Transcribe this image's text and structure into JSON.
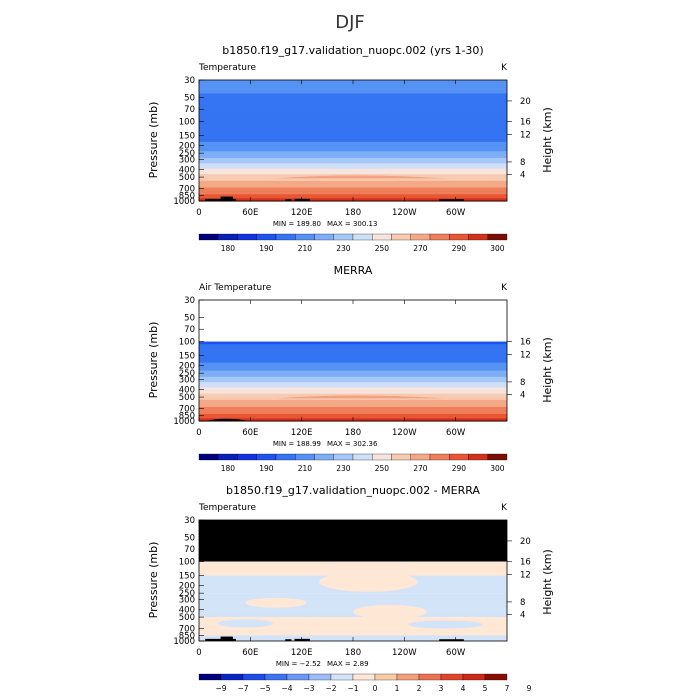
{
  "figure": {
    "title": "DJF"
  },
  "chart_data": [
    {
      "type": "heatmap",
      "title": "b1850.f19_g17.validation_nuopc.002 (yrs 1-30)",
      "field_label": "Temperature",
      "units": "K",
      "xlabel": "",
      "ylabel": "Pressure (mb)",
      "ylabel_right": "Height (km)",
      "x_ticks": [
        "0",
        "60E",
        "120E",
        "180",
        "120W",
        "60W"
      ],
      "y_ticks": [
        "30",
        "50",
        "70",
        "100",
        "150",
        "200",
        "250",
        "300",
        "400",
        "500",
        "700",
        "850",
        "1000"
      ],
      "height_ticks": [
        "20",
        "16",
        "12",
        "8",
        "4"
      ],
      "ylim": [
        1000,
        30
      ],
      "min_label": "MIN = 189.80",
      "max_label": "MAX = 300.13",
      "colorbar_labels": [
        "180",
        "190",
        "210",
        "230",
        "250",
        "270",
        "290",
        "300"
      ],
      "levels": [
        180,
        185,
        190,
        200,
        210,
        220,
        230,
        240,
        250,
        260,
        270,
        280,
        290,
        295,
        300
      ],
      "profile": [
        {
          "p": 1000,
          "v": 297
        },
        {
          "p": 850,
          "v": 292
        },
        {
          "p": 700,
          "v": 282
        },
        {
          "p": 500,
          "v": 265
        },
        {
          "p": 400,
          "v": 252
        },
        {
          "p": 300,
          "v": 234
        },
        {
          "p": 250,
          "v": 222
        },
        {
          "p": 200,
          "v": 213
        },
        {
          "p": 150,
          "v": 206
        },
        {
          "p": 100,
          "v": 201
        },
        {
          "p": 70,
          "v": 205
        },
        {
          "p": 50,
          "v": 209
        },
        {
          "p": 30,
          "v": 214
        }
      ]
    },
    {
      "type": "heatmap",
      "title": "MERRA",
      "field_label": "Air Temperature",
      "units": "K",
      "xlabel": "",
      "ylabel": "Pressure (mb)",
      "ylabel_right": "Height (km)",
      "x_ticks": [
        "0",
        "60E",
        "120E",
        "180",
        "120W",
        "60W"
      ],
      "y_ticks": [
        "30",
        "50",
        "70",
        "100",
        "150",
        "200",
        "250",
        "300",
        "400",
        "500",
        "700",
        "850",
        "1000"
      ],
      "height_ticks": [
        "16",
        "12",
        "8",
        "4"
      ],
      "ylim": [
        1000,
        30
      ],
      "data_top_p": 100,
      "min_label": "MIN = 188.99",
      "max_label": "MAX = 302.36",
      "colorbar_labels": [
        "180",
        "190",
        "210",
        "230",
        "250",
        "270",
        "290",
        "300"
      ],
      "levels": [
        180,
        185,
        190,
        200,
        210,
        220,
        230,
        240,
        250,
        260,
        270,
        280,
        290,
        295,
        300
      ],
      "profile": [
        {
          "p": 1000,
          "v": 298
        },
        {
          "p": 850,
          "v": 292
        },
        {
          "p": 700,
          "v": 283
        },
        {
          "p": 500,
          "v": 266
        },
        {
          "p": 400,
          "v": 253
        },
        {
          "p": 300,
          "v": 235
        },
        {
          "p": 250,
          "v": 223
        },
        {
          "p": 200,
          "v": 212
        },
        {
          "p": 150,
          "v": 204
        },
        {
          "p": 100,
          "v": 199
        }
      ]
    },
    {
      "type": "heatmap",
      "title": "b1850.f19_g17.validation_nuopc.002 - MERRA",
      "field_label": "Temperature",
      "units": "K",
      "xlabel": "",
      "ylabel": "Pressure (mb)",
      "ylabel_right": "Height (km)",
      "x_ticks": [
        "0",
        "60E",
        "120E",
        "180",
        "120W",
        "60W"
      ],
      "y_ticks": [
        "30",
        "50",
        "70",
        "100",
        "150",
        "200",
        "250",
        "300",
        "400",
        "500",
        "700",
        "850",
        "1000"
      ],
      "height_ticks": [
        "20",
        "16",
        "12",
        "8",
        "4"
      ],
      "ylim": [
        1000,
        30
      ],
      "missing_above_p": 100,
      "min_label": "MIN = −2.52",
      "max_label": "MAX = 2.89",
      "colorbar_labels": [
        "−9",
        "−7",
        "−5",
        "−4",
        "−3",
        "−2",
        "−1",
        "0",
        "1",
        "2",
        "3",
        "4",
        "5",
        "7",
        "9"
      ],
      "levels": [
        -9,
        -7,
        -5,
        -4,
        -3,
        -2,
        -1,
        0,
        1,
        2,
        3,
        4,
        5,
        7,
        9
      ],
      "difference_bands": [
        {
          "p_top": 100,
          "p_bottom": 150,
          "v": 0.5
        },
        {
          "p_top": 150,
          "p_bottom": 250,
          "v": -0.5
        },
        {
          "p_top": 250,
          "p_bottom": 400,
          "v": -0.5
        },
        {
          "p_top": 400,
          "p_bottom": 500,
          "v": -0.5
        },
        {
          "p_top": 500,
          "p_bottom": 700,
          "v": 0.5
        },
        {
          "p_top": 700,
          "p_bottom": 850,
          "v": 0.5
        },
        {
          "p_top": 850,
          "p_bottom": 1000,
          "v": -0.5
        }
      ]
    }
  ],
  "colors": {
    "abs_scale": [
      "#00007a",
      "#0a1fb8",
      "#1334dc",
      "#1f53ef",
      "#3574f2",
      "#5592f4",
      "#7daef6",
      "#a6c8f8",
      "#cfdff8",
      "#f6e4dd",
      "#f6cbb2",
      "#f4a986",
      "#ef7f5a",
      "#e95634",
      "#d2321b",
      "#7b0f07"
    ],
    "diff_scale": [
      "#00007a",
      "#0a25c2",
      "#1d4de8",
      "#3d74f1",
      "#6a98f4",
      "#9dbcf6",
      "#d3e3f8",
      "#ffe7d6",
      "#f8caa8",
      "#f29f7b",
      "#ea7253",
      "#e0452c",
      "#c92a18",
      "#8a0d05"
    ],
    "missing": "#000000"
  }
}
